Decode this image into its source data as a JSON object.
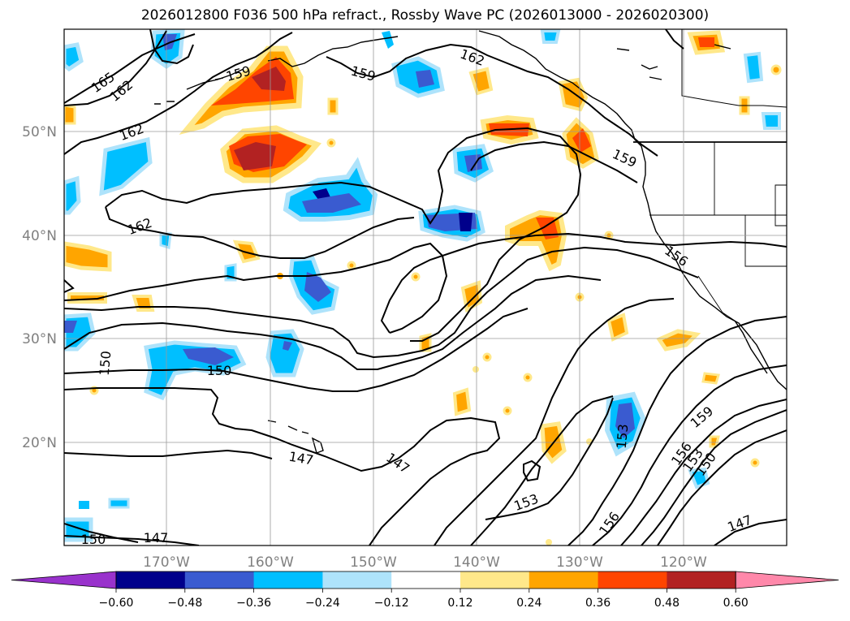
{
  "title": "2026012800 F036 500 hPa refract., Rossby Wave PC (2026013000 - 2026020300)",
  "map": {
    "lon_ticks": [
      "170°W",
      "160°W",
      "150°W",
      "140°W",
      "130°W",
      "120°W"
    ],
    "lat_ticks": [
      "50°N",
      "40°N",
      "30°N",
      "20°N"
    ],
    "contour_labels": [
      "165",
      "162",
      "162",
      "162",
      "159",
      "159",
      "162",
      "159",
      "156",
      "150",
      "150",
      "147",
      "147",
      "153",
      "156",
      "153",
      "159",
      "156",
      "153",
      "150",
      "147",
      "150",
      "147"
    ]
  },
  "colorbar": {
    "ticks": [
      "−0.60",
      "−0.48",
      "−0.36",
      "−0.24",
      "−0.12",
      "0.12",
      "0.24",
      "0.36",
      "0.48",
      "0.60"
    ],
    "colors": [
      "#9932cc",
      "#00008b",
      "#3a5bd0",
      "#00bfff",
      "#aee3fb",
      "#ffffff",
      "#ffe88a",
      "#ffa500",
      "#ff4500",
      "#b22222",
      "#ff88aa"
    ]
  }
}
